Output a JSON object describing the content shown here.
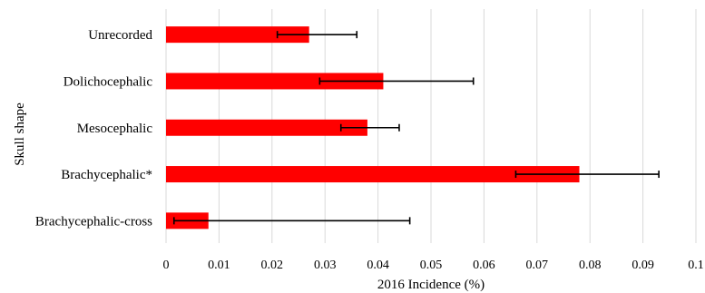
{
  "chart_data": {
    "type": "bar",
    "orientation": "horizontal",
    "categories": [
      "Unrecorded",
      "Dolichocephalic",
      "Mesocephalic",
      "Brachycephalic*",
      "Brachycephalic-cross"
    ],
    "values": [
      0.027,
      0.041,
      0.038,
      0.078,
      0.008
    ],
    "error_low": [
      0.021,
      0.029,
      0.033,
      0.066,
      0.0015
    ],
    "error_high": [
      0.036,
      0.058,
      0.044,
      0.093,
      0.046
    ],
    "xlabel": "2016 Incidence (%)",
    "ylabel": "Skull shape",
    "xlim": [
      0,
      0.1
    ],
    "xticks": [
      "0",
      "0.01",
      "0.02",
      "0.03",
      "0.04",
      "0.05",
      "0.06",
      "0.07",
      "0.08",
      "0.09",
      "0.1"
    ],
    "grid": "vertical",
    "legend": "none",
    "colors": {
      "bar": "#ff0000",
      "grid": "#d9d9d9",
      "error": "#000000"
    }
  }
}
